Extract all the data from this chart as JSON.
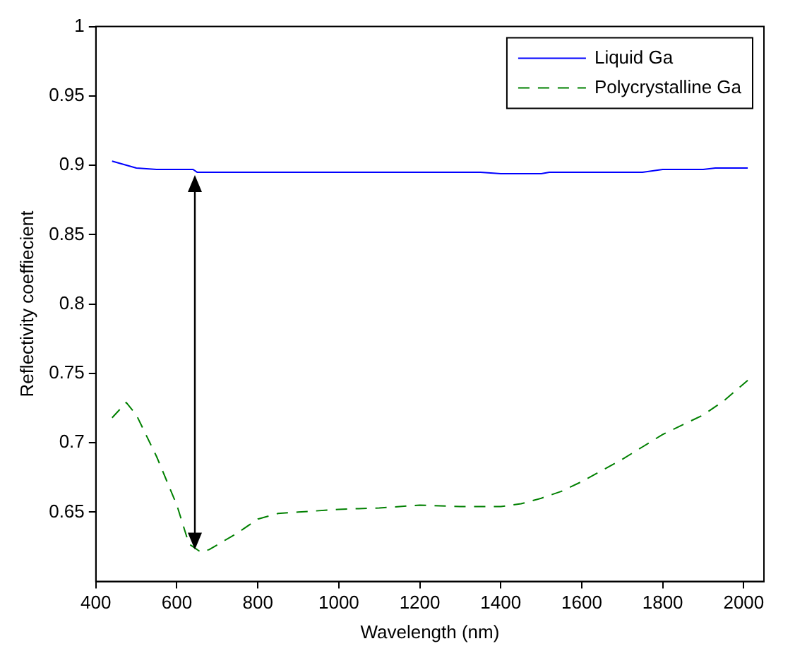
{
  "chart_data": {
    "type": "line",
    "xlabel": "Wavelength (nm)",
    "ylabel": "Reflectivity coeffiecient",
    "xlim": [
      400,
      2050
    ],
    "xticks": [
      400,
      600,
      800,
      1000,
      1200,
      1400,
      1600,
      1800,
      2000
    ],
    "ylim": [
      0.6,
      1
    ],
    "yticks": [
      0.65,
      0.7,
      0.75,
      0.8,
      0.85,
      0.9,
      0.95,
      1
    ],
    "grid": false,
    "legend": "top right",
    "series": [
      {
        "name": "Liquid Ga",
        "color": "#0000ff",
        "line_style": "solid",
        "x": [
          440,
          500,
          550,
          640,
          650,
          1000,
          1350,
          1400,
          1500,
          1520,
          1750,
          1800,
          1900,
          1930,
          2010
        ],
        "values": [
          0.903,
          0.898,
          0.897,
          0.897,
          0.895,
          0.895,
          0.895,
          0.894,
          0.894,
          0.895,
          0.895,
          0.897,
          0.897,
          0.898,
          0.898
        ]
      },
      {
        "name": "Polycrystalline Ga",
        "color": "#008000",
        "line_style": "dashed",
        "x": [
          440,
          475,
          500,
          550,
          600,
          630,
          660,
          680,
          750,
          800,
          850,
          900,
          1000,
          1100,
          1200,
          1300,
          1400,
          1450,
          1500,
          1550,
          1600,
          1700,
          1750,
          1800,
          1900,
          1950,
          2010
        ],
        "values": [
          0.718,
          0.729,
          0.72,
          0.69,
          0.655,
          0.627,
          0.621,
          0.623,
          0.635,
          0.645,
          0.649,
          0.65,
          0.652,
          0.653,
          0.655,
          0.654,
          0.654,
          0.656,
          0.66,
          0.665,
          0.672,
          0.688,
          0.697,
          0.706,
          0.72,
          0.73,
          0.745
        ]
      }
    ]
  }
}
